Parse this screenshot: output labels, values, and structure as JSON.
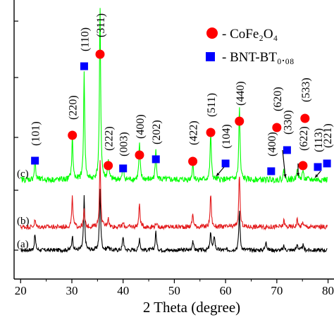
{
  "chart_data": {
    "type": "line",
    "title": "",
    "xlabel": "2 Theta (degree)",
    "ylabel": "",
    "xlim": [
      19,
      80
    ],
    "x_ticks": [
      20,
      30,
      40,
      50,
      60,
      70,
      80
    ],
    "x_tick_labels": [
      "20",
      "30",
      "40",
      "50",
      "60",
      "70",
      "80"
    ],
    "grid": false,
    "legend_position": "top-right",
    "legend": [
      {
        "key": "cfo",
        "marker": "circle",
        "color": "#ff0000",
        "label": "- CoFe₂O₄"
      },
      {
        "key": "bnt",
        "marker": "square",
        "color": "#0000ff",
        "label": "- BNT-BT₀.₀₈"
      }
    ],
    "series": [
      {
        "label": "(a)",
        "color": "#000000",
        "baseline": 0.0,
        "noise": 0.006,
        "peaks": [
          {
            "x": 22.8,
            "h": 0.048
          },
          {
            "x": 30.1,
            "h": 0.045
          },
          {
            "x": 32.4,
            "h": 0.16
          },
          {
            "x": 35.5,
            "h": 0.185
          },
          {
            "x": 37.1,
            "h": 0.012
          },
          {
            "x": 40.0,
            "h": 0.042
          },
          {
            "x": 43.2,
            "h": 0.038
          },
          {
            "x": 46.4,
            "h": 0.058
          },
          {
            "x": 53.6,
            "h": 0.03
          },
          {
            "x": 57.1,
            "h": 0.055
          },
          {
            "x": 57.8,
            "h": 0.045
          },
          {
            "x": 62.7,
            "h": 0.12
          },
          {
            "x": 67.9,
            "h": 0.03
          },
          {
            "x": 71.4,
            "h": 0.012
          },
          {
            "x": 74.0,
            "h": 0.02
          },
          {
            "x": 75.1,
            "h": 0.015
          }
        ]
      },
      {
        "label": "(b)",
        "color": "#e31a1c",
        "baseline": 0.17,
        "noise": 0.007,
        "peaks": [
          {
            "x": 22.8,
            "h": 0.02
          },
          {
            "x": 30.1,
            "h": 0.09
          },
          {
            "x": 32.4,
            "h": 0.05
          },
          {
            "x": 35.5,
            "h": 0.2
          },
          {
            "x": 37.1,
            "h": 0.03
          },
          {
            "x": 40.0,
            "h": 0.012
          },
          {
            "x": 43.2,
            "h": 0.07
          },
          {
            "x": 46.4,
            "h": 0.012
          },
          {
            "x": 53.6,
            "h": 0.04
          },
          {
            "x": 57.1,
            "h": 0.1
          },
          {
            "x": 62.7,
            "h": 0.16
          },
          {
            "x": 71.4,
            "h": 0.02
          },
          {
            "x": 74.0,
            "h": 0.025
          },
          {
            "x": 75.1,
            "h": 0.015
          }
        ]
      },
      {
        "label": "(c)",
        "color": "#00ff00",
        "baseline": 0.38,
        "noise": 0.009,
        "peaks": [
          {
            "x": 22.8,
            "h": 0.06
          },
          {
            "x": 30.1,
            "h": 0.13
          },
          {
            "x": 32.4,
            "h": 0.32
          },
          {
            "x": 35.5,
            "h": 0.52
          },
          {
            "x": 37.1,
            "h": 0.06
          },
          {
            "x": 40.0,
            "h": 0.04
          },
          {
            "x": 43.2,
            "h": 0.11
          },
          {
            "x": 46.4,
            "h": 0.09
          },
          {
            "x": 53.6,
            "h": 0.05
          },
          {
            "x": 57.1,
            "h": 0.14
          },
          {
            "x": 62.7,
            "h": 0.22
          },
          {
            "x": 71.4,
            "h": 0.03
          },
          {
            "x": 74.0,
            "h": 0.04
          },
          {
            "x": 75.1,
            "h": 0.03
          }
        ]
      }
    ],
    "annotations": [
      {
        "hkl": "(101)",
        "x": 22.8,
        "phase": "bnt"
      },
      {
        "hkl": "(220)",
        "x": 30.1,
        "phase": "cfo"
      },
      {
        "hkl": "(110)",
        "x": 32.4,
        "phase": "bnt"
      },
      {
        "hkl": "(311)",
        "x": 35.5,
        "phase": "cfo"
      },
      {
        "hkl": "(222)",
        "x": 37.1,
        "phase": "cfo"
      },
      {
        "hkl": "(003)",
        "x": 40.0,
        "phase": "bnt"
      },
      {
        "hkl": "(400)",
        "x": 43.2,
        "phase": "cfo"
      },
      {
        "hkl": "(202)",
        "x": 46.4,
        "phase": "bnt"
      },
      {
        "hkl": "(422)",
        "x": 53.6,
        "phase": "cfo"
      },
      {
        "hkl": "(511)",
        "x": 57.1,
        "phase": "cfo"
      },
      {
        "hkl": "(104)",
        "x": 60.0,
        "phase": "bnt"
      },
      {
        "hkl": "(440)",
        "x": 62.7,
        "phase": "cfo"
      },
      {
        "hkl": "(400)",
        "x": 68.9,
        "phase": "bnt"
      },
      {
        "hkl": "(620)",
        "x": 70.0,
        "phase": "cfo"
      },
      {
        "hkl": "(330)",
        "x": 72.0,
        "phase": "bnt"
      },
      {
        "hkl": "(622)",
        "x": 75.1,
        "phase": "cfo"
      },
      {
        "hkl": "(533)",
        "x": 75.5,
        "phase": "cfo"
      },
      {
        "hkl": "(113)",
        "x": 78.0,
        "phase": "bnt"
      },
      {
        "hkl": "(221)",
        "x": 79.8,
        "phase": "bnt"
      }
    ]
  }
}
